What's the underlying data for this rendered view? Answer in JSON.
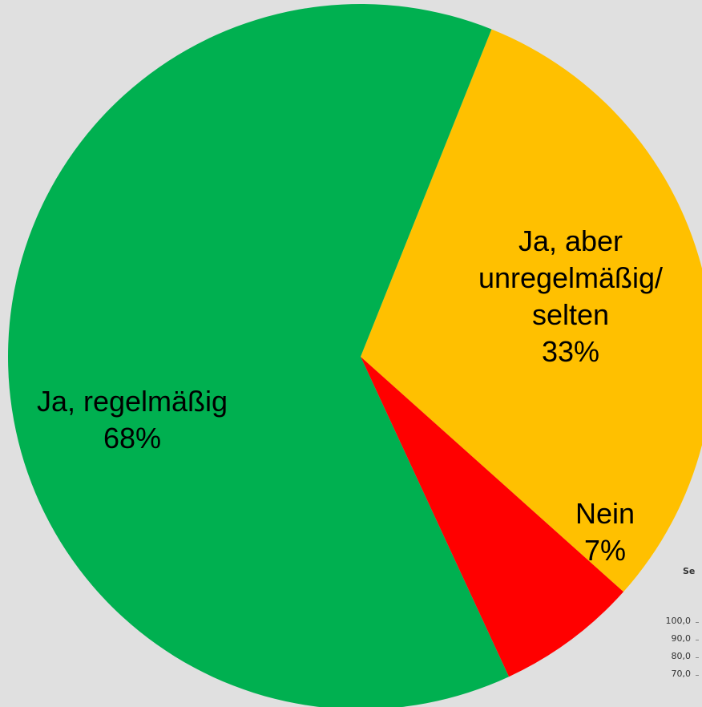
{
  "chart_data": {
    "type": "pie",
    "categories": [
      "Ja, aber\nunregelmäßig/\nselten",
      "Nein",
      "Ja, regelmäßig"
    ],
    "values": [
      33,
      7,
      68
    ],
    "value_labels": [
      "33%",
      "7%",
      "68%"
    ],
    "colors": [
      "#ffc000",
      "#ff0000",
      "#00b050"
    ]
  },
  "partial_chart": {
    "title": "Se",
    "tick_labels": [
      "100,0",
      "90,0",
      "80,0",
      "70,0"
    ]
  }
}
